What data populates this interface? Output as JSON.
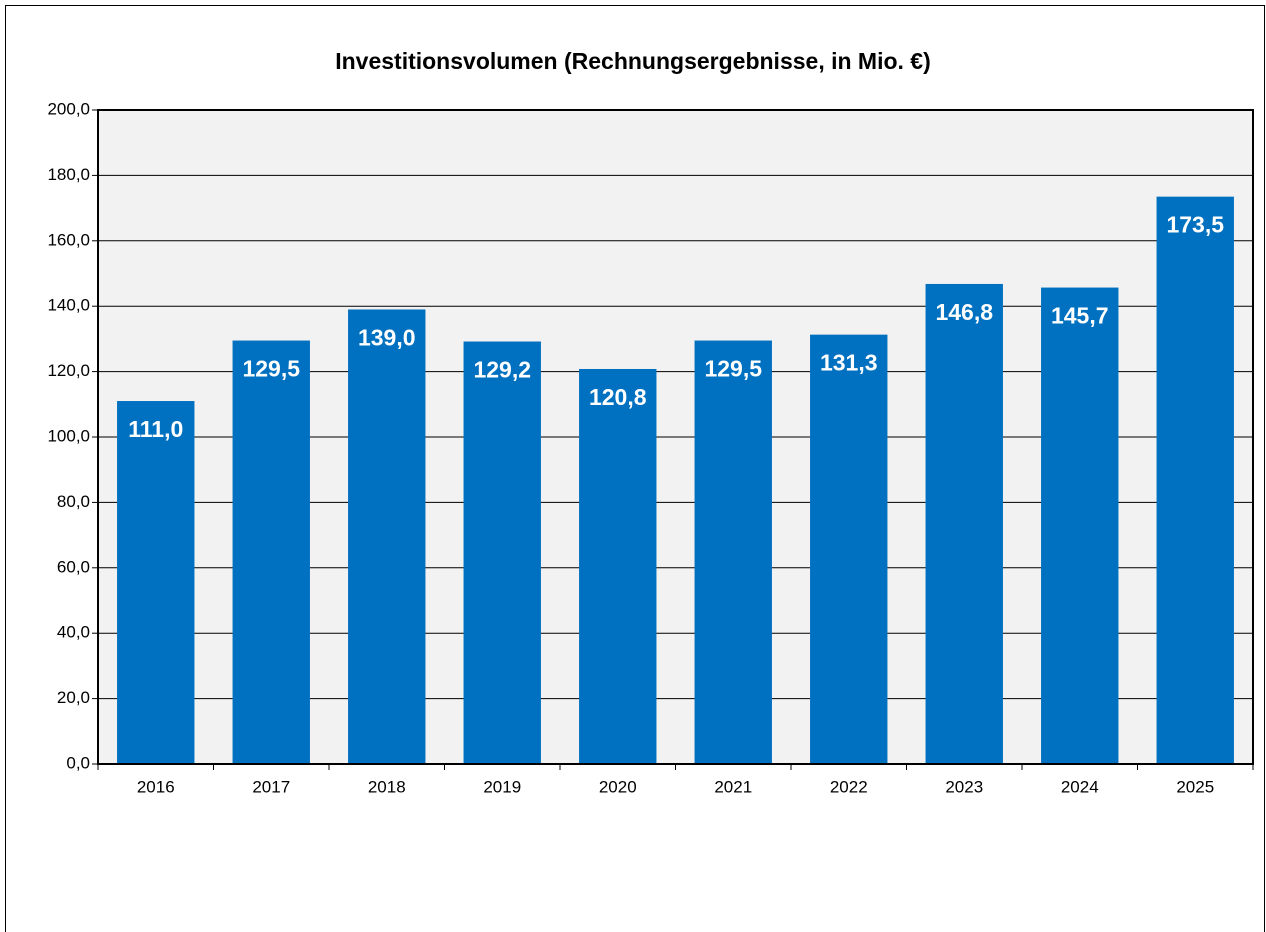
{
  "chart_data": {
    "type": "bar",
    "title": "Investitionsvolumen (Rechnungsergebnisse, in Mio. €)",
    "categories": [
      "2016",
      "2017",
      "2018",
      "2019",
      "2020",
      "2021",
      "2022",
      "2023",
      "2024",
      "2025"
    ],
    "values": [
      111.0,
      129.5,
      139.0,
      129.2,
      120.8,
      129.5,
      131.3,
      146.8,
      145.7,
      173.5
    ],
    "value_labels": [
      "111,0",
      "129,5",
      "139,0",
      "129,2",
      "120,8",
      "129,5",
      "131,3",
      "146,8",
      "145,7",
      "173,5"
    ],
    "color": "#0070c0",
    "ylim": [
      0,
      200
    ],
    "yticks": [
      {
        "value": 0,
        "label": "0,0"
      },
      {
        "value": 20,
        "label": "20,0"
      },
      {
        "value": 40,
        "label": "40,0"
      },
      {
        "value": 60,
        "label": "60,0"
      },
      {
        "value": 80,
        "label": "80,0"
      },
      {
        "value": 100,
        "label": "100,0"
      },
      {
        "value": 120,
        "label": "120,0"
      },
      {
        "value": 140,
        "label": "140,0"
      },
      {
        "value": 160,
        "label": "160,0"
      },
      {
        "value": 180,
        "label": "180,0"
      },
      {
        "value": 200,
        "label": "200,0"
      }
    ],
    "grid": true
  }
}
